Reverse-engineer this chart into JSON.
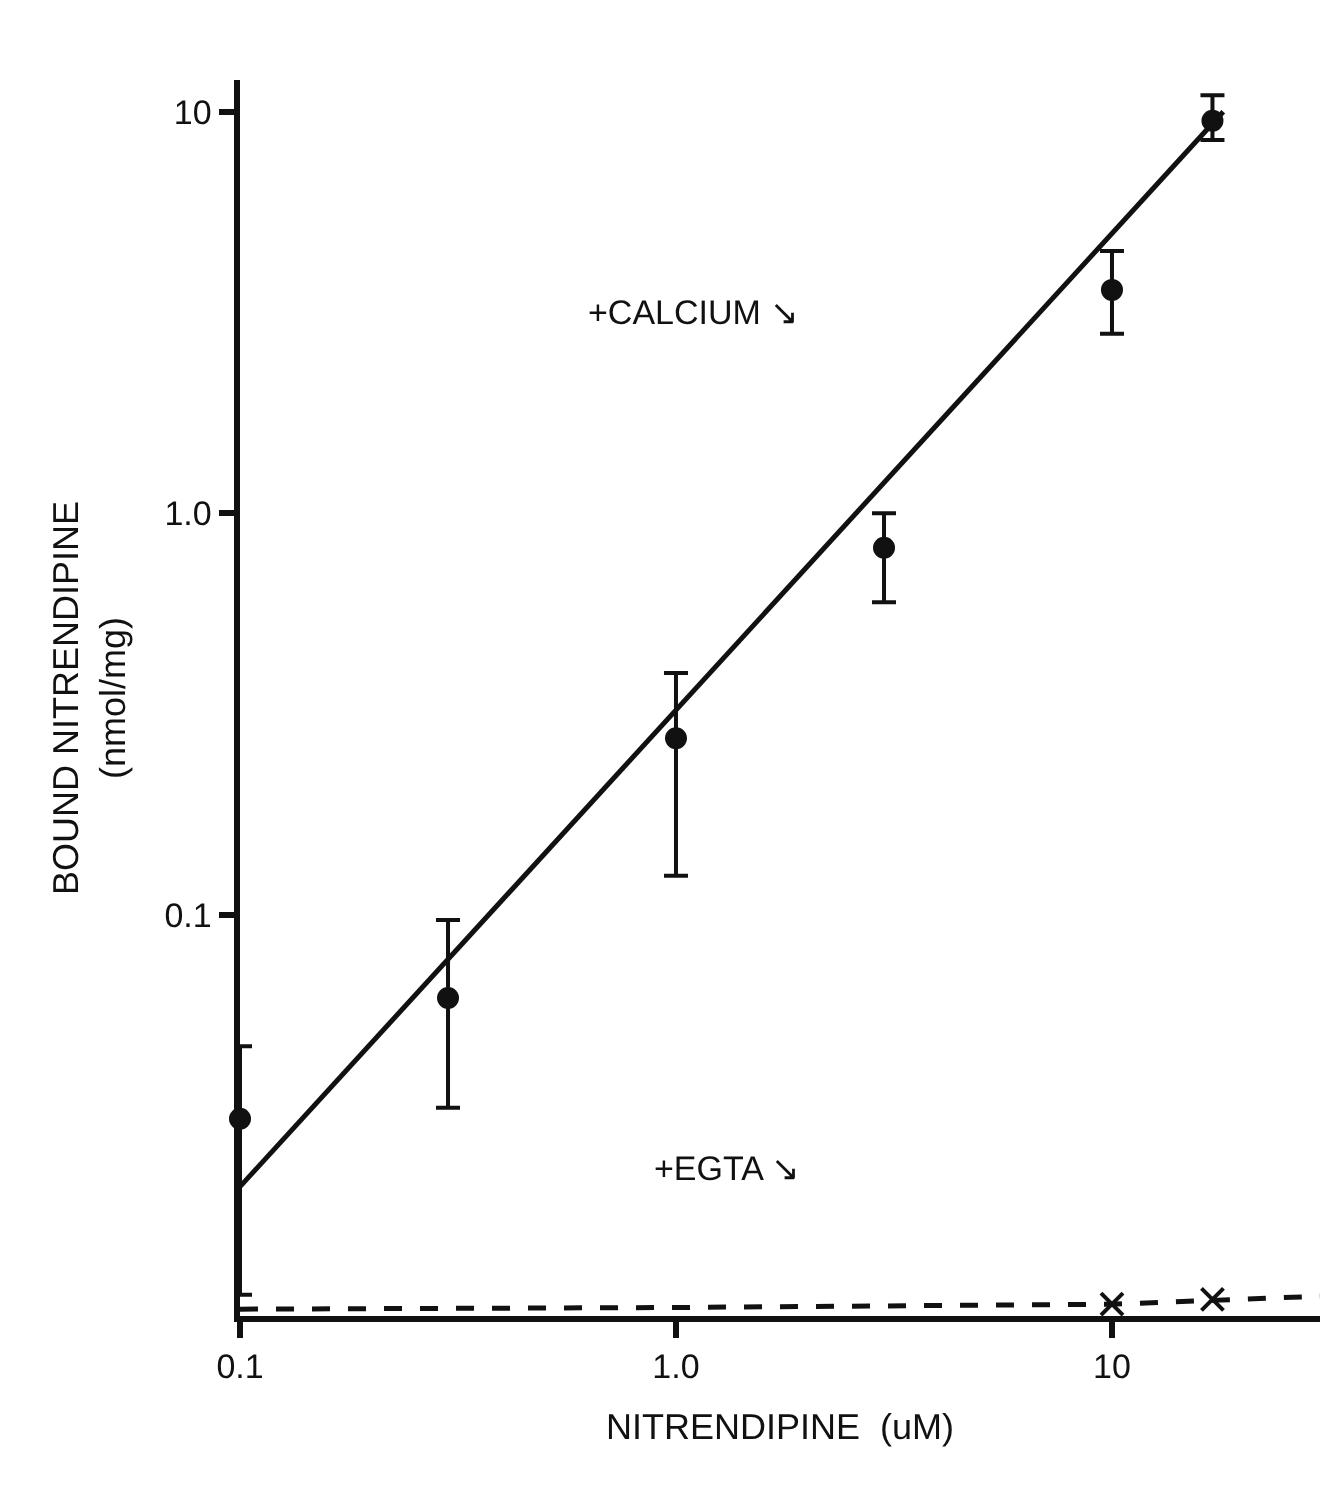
{
  "chart_data": {
    "type": "scatter",
    "xlabel": "NITRENDIPINE  (uM)",
    "ylabel": "BOUND NITRENDIPINE\n(nmol/mg)",
    "log": "xy",
    "xlim": [
      0.1,
      30
    ],
    "xticks": [
      0.1,
      {
        "value": 1,
        "label": "1.0"
      },
      10
    ],
    "ylim": [
      0.01,
      12
    ],
    "yticks": [
      0.1,
      {
        "value": 1,
        "label": "1.0"
      },
      10
    ],
    "series": [
      {
        "color": "#111111",
        "marker": "circle",
        "x": [
          0.1,
          0.3,
          1,
          3,
          10,
          17
        ],
        "values": [
          0.031,
          0.062,
          0.275,
          0.82,
          3.6,
          9.5
        ],
        "errors": [
          [
            0.0113,
            0.047
          ],
          [
            0.033,
            0.097
          ],
          [
            0.125,
            0.4
          ],
          [
            0.6,
            1.0
          ],
          [
            2.8,
            4.5
          ],
          [
            8.5,
            11
          ]
        ]
      },
      {
        "type": "line",
        "color": "#111111",
        "marker": "none",
        "line_style": "solid",
        "x": [
          0.1,
          18
        ],
        "values": [
          0.021,
          10
        ]
      },
      {
        "type": "line",
        "color": "#111111",
        "marker": "none",
        "line_style": "dashed",
        "x": [
          0.1,
          1,
          10,
          30
        ],
        "values": [
          0.0104,
          0.0105,
          0.0107,
          0.0112
        ]
      },
      {
        "color": "#111111",
        "marker": "cross",
        "x": [
          10,
          17
        ],
        "values": [
          0.0107,
          0.011
        ]
      }
    ],
    "annotations": [
      "+CALCIUM ↘",
      "+EGTA ↘"
    ]
  }
}
